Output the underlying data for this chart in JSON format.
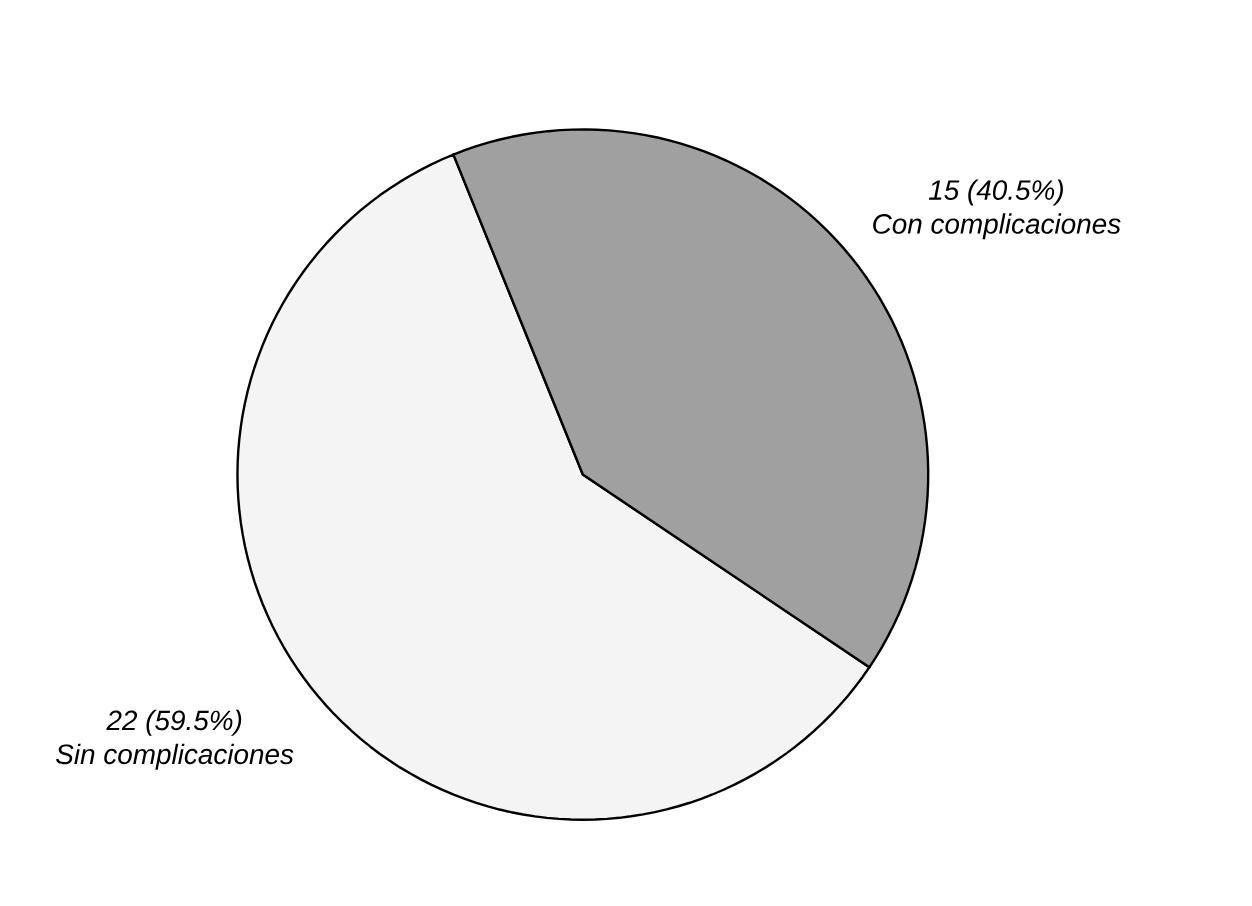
{
  "chart_data": {
    "type": "pie",
    "categories": [
      "Sin complicaciones",
      "Con complicaciones"
    ],
    "values": [
      22,
      15
    ],
    "value_labels": [
      "22 (59.5%)",
      "15 (40.5%)"
    ],
    "colors": [
      "#f4f4f4",
      "#a0a0a0"
    ]
  }
}
